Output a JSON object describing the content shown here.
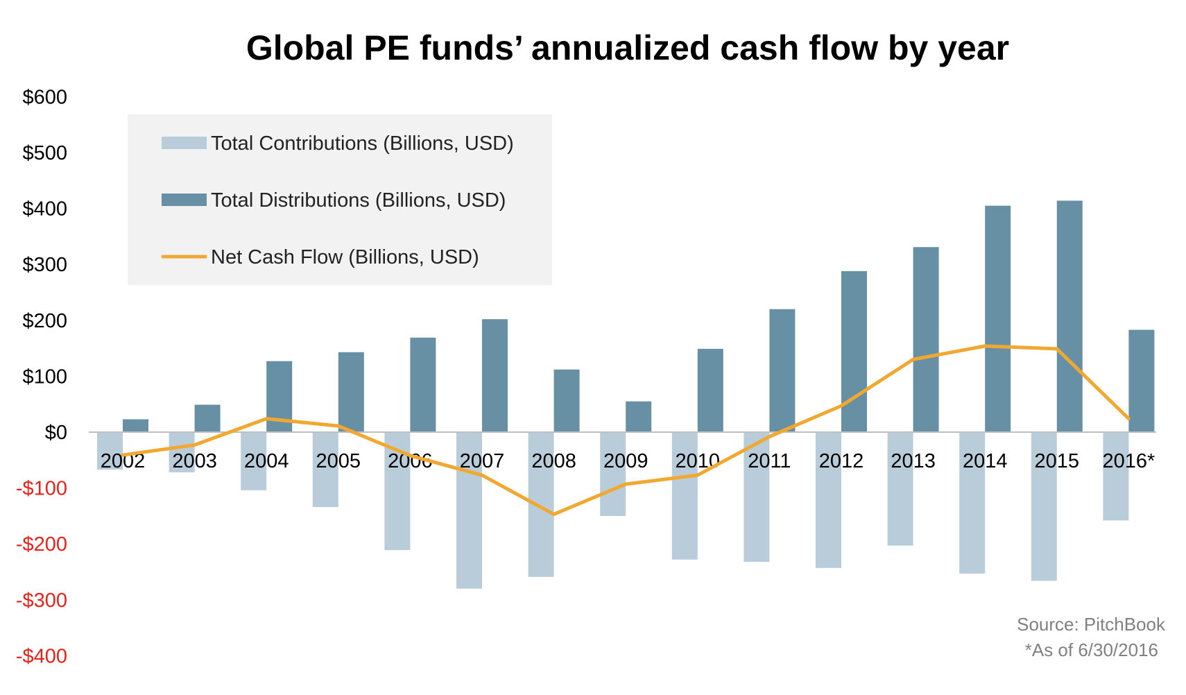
{
  "chart_data": {
    "type": "bar",
    "title": "Global PE funds’ annualized cash flow by year",
    "categories": [
      "2002",
      "2003",
      "2004",
      "2005",
      "2006",
      "2007",
      "2008",
      "2009",
      "2010",
      "2011",
      "2012",
      "2013",
      "2014",
      "2015",
      "2016*"
    ],
    "ylim": [
      -400,
      600
    ],
    "yticks": [
      {
        "value": 600,
        "label": "$600"
      },
      {
        "value": 500,
        "label": "$500"
      },
      {
        "value": 400,
        "label": "$400"
      },
      {
        "value": 300,
        "label": "$300"
      },
      {
        "value": 200,
        "label": "$200"
      },
      {
        "value": 100,
        "label": "$100"
      },
      {
        "value": 0,
        "label": "$0"
      },
      {
        "value": -100,
        "label": "-$100"
      },
      {
        "value": -200,
        "label": "-$200"
      },
      {
        "value": -300,
        "label": "-$300"
      },
      {
        "value": -400,
        "label": "-$400"
      }
    ],
    "series": [
      {
        "name": "Total Contributions (Billions, USD)",
        "kind": "bar",
        "color": "#B8CDD9",
        "values": [
          -67,
          -72,
          -104,
          -134,
          -211,
          -280,
          -259,
          -150,
          -228,
          -232,
          -243,
          -203,
          -253,
          -266,
          -158
        ]
      },
      {
        "name": "Total Distributions (Billions, USD)",
        "kind": "bar",
        "color": "#6890A5",
        "values": [
          23,
          49,
          127,
          143,
          169,
          202,
          112,
          55,
          149,
          220,
          288,
          331,
          405,
          414,
          183
        ]
      },
      {
        "name": "Net Cash Flow (Billions, USD)",
        "kind": "line",
        "color": "#F0A830",
        "values": [
          -41,
          -23,
          24,
          11,
          -42,
          -77,
          -147,
          -93,
          -77,
          -8,
          47,
          130,
          154,
          149,
          24
        ]
      }
    ],
    "negative_tick_color": "#E8221B",
    "positive_tick_color": "#000000",
    "legend_position": "top-left",
    "legend_background": "#F2F2F2",
    "grid": false,
    "notes": [
      "Source: PitchBook",
      "*As of 6/30/2016"
    ]
  }
}
